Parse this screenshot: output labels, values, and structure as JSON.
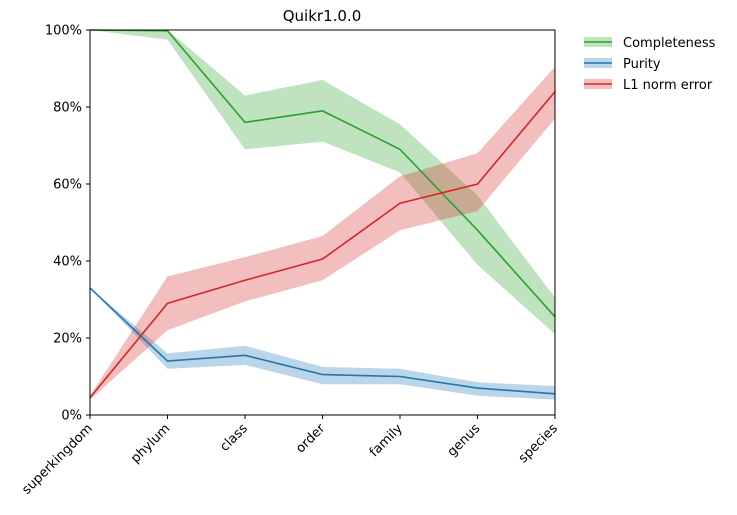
{
  "chart_data": {
    "type": "line",
    "title": "Quikr1.0.0",
    "categories": [
      "superkingdom",
      "phylum",
      "class",
      "order",
      "family",
      "genus",
      "species"
    ],
    "ylim": [
      0,
      100
    ],
    "yticks": [
      "0%",
      "20%",
      "40%",
      "60%",
      "80%",
      "100%"
    ],
    "ytick_values": [
      0,
      20,
      40,
      60,
      80,
      100
    ],
    "legend_position": "outside-top-right",
    "grid": false,
    "series": [
      {
        "name": "Completeness",
        "color": "#2ca02c",
        "band_color": "#a9dba1",
        "values": [
          100,
          99.8,
          76,
          79,
          69,
          48,
          25.5
        ],
        "lower": [
          100,
          97.5,
          69,
          71,
          63,
          39,
          21
        ],
        "upper": [
          100,
          100,
          83,
          87,
          75.5,
          57,
          30.5
        ]
      },
      {
        "name": "Purity",
        "color": "#1f77b4",
        "band_color": "#9fc3e2",
        "values": [
          33,
          14,
          15.5,
          10.5,
          10,
          7,
          5.5
        ],
        "lower": [
          33,
          12,
          13,
          8,
          8,
          5,
          4
        ],
        "upper": [
          33,
          16,
          18,
          12.5,
          12,
          8.5,
          7.5
        ]
      },
      {
        "name": "L1 norm error",
        "color": "#d62728",
        "band_color": "#eeadae",
        "values": [
          4.5,
          29,
          35,
          40.5,
          55,
          60,
          84
        ],
        "lower": [
          4,
          22,
          29.5,
          35,
          48,
          53,
          77
        ],
        "upper": [
          5,
          36,
          41,
          46.5,
          62,
          68,
          90.5
        ]
      }
    ]
  }
}
